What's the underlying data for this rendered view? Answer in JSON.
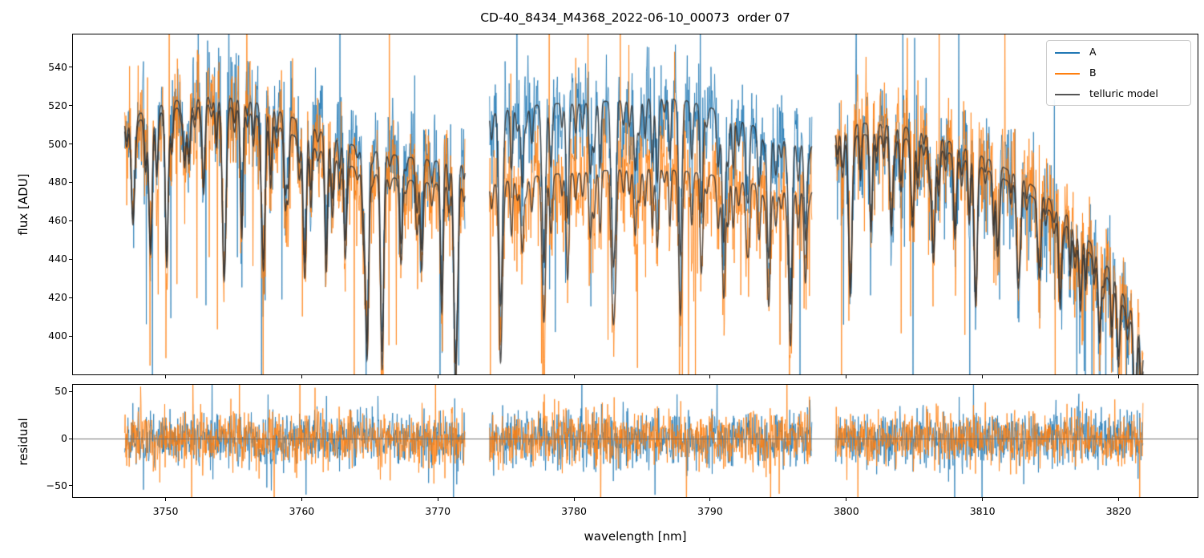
{
  "title": "CD-40_8434_M4368_2022-06-10_00073  order 07",
  "chart_data": {
    "type": "line",
    "title": "CD-40_8434_M4368_2022-06-10_00073  order 07",
    "xlabel": "wavelength [nm]",
    "xlim": [
      3743.2,
      3825.8
    ],
    "xticks": [
      3750,
      3760,
      3770,
      3780,
      3790,
      3800,
      3810,
      3820
    ],
    "grid": false,
    "legend": {
      "position": "upper right",
      "entries": [
        {
          "label": "A",
          "color": "#1f77b4"
        },
        {
          "label": "B",
          "color": "#ff7f0e"
        },
        {
          "label": "telluric model",
          "color": "#555555"
        }
      ]
    },
    "panels": [
      {
        "name": "flux",
        "ylabel": "flux [ADU]",
        "ylim": [
          380,
          557
        ],
        "yticks": [
          400,
          420,
          440,
          460,
          480,
          500,
          520,
          540
        ]
      },
      {
        "name": "residual",
        "ylabel": "residual",
        "ylim": [
          -62,
          57
        ],
        "yticks": [
          -50,
          0,
          50
        ],
        "zero_line": true,
        "zero_line_color": "#666666"
      }
    ],
    "segments": [
      {
        "id": "seg1",
        "range": [
          3747.0,
          3772.0
        ]
      },
      {
        "id": "seg2",
        "range": [
          3773.8,
          3797.5
        ]
      },
      {
        "id": "seg3",
        "range": [
          3799.2,
          3821.8
        ]
      }
    ],
    "series": {
      "A": {
        "color": "#1f77b4",
        "noise_sigma": 14,
        "continuum": {
          "seg1": [
            [
              3747,
              512
            ],
            [
              3749,
              519
            ],
            [
              3751,
              523
            ],
            [
              3753,
              525
            ],
            [
              3755,
              524
            ],
            [
              3757,
              521
            ],
            [
              3759,
              515
            ],
            [
              3761,
              508
            ],
            [
              3763,
              501
            ],
            [
              3765,
              497
            ],
            [
              3767,
              494
            ],
            [
              3769,
              492
            ],
            [
              3771,
              490
            ],
            [
              3772,
              489
            ]
          ],
          "seg2": [
            [
              3773.8,
              516
            ],
            [
              3776,
              519
            ],
            [
              3778,
              521
            ],
            [
              3780,
              521
            ],
            [
              3782,
              522
            ],
            [
              3784,
              523
            ],
            [
              3786,
              524
            ],
            [
              3788,
              523
            ],
            [
              3790,
              519
            ],
            [
              3792,
              513
            ],
            [
              3794,
              507
            ],
            [
              3796,
              502
            ],
            [
              3797.5,
              499
            ]
          ],
          "seg3": [
            [
              3799.2,
              501
            ],
            [
              3801,
              505
            ],
            [
              3803,
              504
            ],
            [
              3805,
              502
            ],
            [
              3807,
              497
            ],
            [
              3809,
              491
            ],
            [
              3811,
              484
            ],
            [
              3813,
              476
            ],
            [
              3815,
              465
            ],
            [
              3816.5,
              455
            ],
            [
              3818,
              442
            ],
            [
              3819.5,
              427
            ],
            [
              3821,
              407
            ],
            [
              3821.8,
              389
            ]
          ]
        }
      },
      "B": {
        "color": "#ff7f0e",
        "noise_sigma": 14,
        "continuum": {
          "seg1": [
            [
              3747,
              509
            ],
            [
              3749,
              515
            ],
            [
              3751,
              519
            ],
            [
              3753,
              521
            ],
            [
              3755,
              519
            ],
            [
              3757,
              514
            ],
            [
              3759,
              506
            ],
            [
              3761,
              498
            ],
            [
              3763,
              490
            ],
            [
              3765,
              485
            ],
            [
              3767,
              482
            ],
            [
              3769,
              480
            ],
            [
              3771,
              478
            ],
            [
              3772,
              477
            ]
          ],
          "seg2": [
            [
              3773.8,
              479
            ],
            [
              3776,
              482
            ],
            [
              3778,
              484
            ],
            [
              3780,
              485
            ],
            [
              3782,
              486
            ],
            [
              3784,
              487
            ],
            [
              3786,
              487
            ],
            [
              3788,
              486
            ],
            [
              3790,
              484
            ],
            [
              3792,
              481
            ],
            [
              3794,
              478
            ],
            [
              3796,
              476
            ],
            [
              3797.5,
              475
            ]
          ],
          "seg3": [
            [
              3799.2,
              506
            ],
            [
              3801,
              511
            ],
            [
              3803,
              510
            ],
            [
              3805,
              508
            ],
            [
              3807,
              503
            ],
            [
              3809,
              497
            ],
            [
              3811,
              490
            ],
            [
              3813,
              482
            ],
            [
              3815,
              471
            ],
            [
              3816.5,
              461
            ],
            [
              3818,
              448
            ],
            [
              3819.5,
              433
            ],
            [
              3821,
              413
            ],
            [
              3821.8,
              395
            ]
          ]
        }
      },
      "telluric_model": {
        "color": "#333333",
        "lines": {
          "seg1": [
            [
              3747.6,
              0.1,
              0.12
            ],
            [
              3748.9,
              0.14,
              0.12
            ],
            [
              3750.1,
              0.12,
              0.12
            ],
            [
              3751.4,
              0.06,
              0.1
            ],
            [
              3752.8,
              0.09,
              0.1
            ],
            [
              3754.3,
              0.17,
              0.13
            ],
            [
              3755.6,
              0.07,
              0.1
            ],
            [
              3757.2,
              0.15,
              0.12
            ],
            [
              3758.8,
              0.08,
              0.1
            ],
            [
              3760.2,
              0.11,
              0.12
            ],
            [
              3761.8,
              0.08,
              0.1
            ],
            [
              3763.2,
              0.1,
              0.1
            ],
            [
              3764.8,
              0.2,
              0.12
            ],
            [
              3765.9,
              0.18,
              0.12
            ],
            [
              3767.3,
              0.08,
              0.1
            ],
            [
              3768.8,
              0.07,
              0.1
            ],
            [
              3770.3,
              0.09,
              0.1
            ],
            [
              3771.3,
              0.21,
              0.12
            ]
          ],
          "seg2": [
            [
              3774.6,
              0.19,
              0.12
            ],
            [
              3776.2,
              0.08,
              0.1
            ],
            [
              3777.8,
              0.15,
              0.12
            ],
            [
              3779.5,
              0.08,
              0.1
            ],
            [
              3781.2,
              0.07,
              0.1
            ],
            [
              3782.9,
              0.16,
              0.12
            ],
            [
              3784.5,
              0.07,
              0.1
            ],
            [
              3786.1,
              0.06,
              0.1
            ],
            [
              3787.8,
              0.14,
              0.12
            ],
            [
              3789.4,
              0.07,
              0.1
            ],
            [
              3791.0,
              0.13,
              0.12
            ],
            [
              3792.7,
              0.07,
              0.1
            ],
            [
              3794.3,
              0.13,
              0.12
            ],
            [
              3795.9,
              0.17,
              0.12
            ],
            [
              3797.0,
              0.1,
              0.1
            ]
          ],
          "seg3": [
            [
              3800.3,
              0.16,
              0.12
            ],
            [
              3801.8,
              0.08,
              0.1
            ],
            [
              3803.3,
              0.1,
              0.1
            ],
            [
              3804.9,
              0.08,
              0.1
            ],
            [
              3806.4,
              0.12,
              0.12
            ],
            [
              3808.0,
              0.08,
              0.1
            ],
            [
              3809.5,
              0.14,
              0.12
            ],
            [
              3811.1,
              0.08,
              0.1
            ],
            [
              3812.6,
              0.1,
              0.1
            ],
            [
              3814.2,
              0.08,
              0.1
            ],
            [
              3815.7,
              0.1,
              0.1
            ],
            [
              3817.2,
              0.08,
              0.1
            ],
            [
              3818.6,
              0.09,
              0.1
            ],
            [
              3820.0,
              0.08,
              0.1
            ],
            [
              3821.2,
              0.11,
              0.1
            ]
          ]
        },
        "microlines": {
          "spacing_min": 0.35,
          "spacing_max": 0.85,
          "depth_max": 0.055,
          "width_min": 0.07,
          "width_max": 0.11
        }
      }
    },
    "noise": {
      "spike_down_prob": 0.013,
      "spike_down_max": 110,
      "spike_up_prob": 0.008,
      "spike_up_max": 70
    },
    "residual": {
      "noise_sigma": 14,
      "spike_prob": 0.012,
      "spike_max": 58
    },
    "seed": 42
  }
}
